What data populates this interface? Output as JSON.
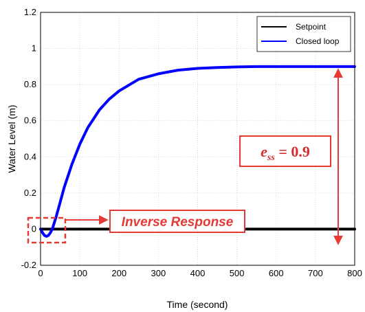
{
  "chart_data": {
    "type": "line",
    "title": "",
    "xlabel": "Time (second)",
    "ylabel": "Water Level (m)",
    "xlim": [
      0,
      800
    ],
    "ylim": [
      -0.2,
      1.2
    ],
    "x_ticks": [
      0,
      100,
      200,
      300,
      400,
      500,
      600,
      700,
      800
    ],
    "y_ticks": [
      -0.2,
      0,
      0.2,
      0.4,
      0.6,
      0.8,
      1,
      1.2
    ],
    "x_tick_labels": [
      "0",
      "100",
      "200",
      "300",
      "400",
      "500",
      "600",
      "700",
      "800"
    ],
    "y_tick_labels": [
      "-0.2",
      "0",
      "0.2",
      "0.4",
      "0.6",
      "0.8",
      "1",
      "1.2"
    ],
    "grid": true,
    "legend_position": "top-right",
    "series": [
      {
        "name": "Setpoint",
        "color": "#000000",
        "x": [
          0,
          800
        ],
        "y": [
          0,
          0
        ]
      },
      {
        "name": "Closed loop",
        "color": "#0000ff",
        "x": [
          0,
          5,
          10,
          15,
          20,
          25,
          30,
          40,
          50,
          60,
          80,
          100,
          120,
          150,
          175,
          200,
          250,
          300,
          350,
          400,
          450,
          500,
          550,
          600,
          650,
          700,
          750,
          800
        ],
        "y": [
          0,
          -0.02,
          -0.035,
          -0.04,
          -0.035,
          -0.02,
          0.0,
          0.07,
          0.15,
          0.23,
          0.36,
          0.47,
          0.56,
          0.66,
          0.72,
          0.765,
          0.83,
          0.86,
          0.88,
          0.89,
          0.895,
          0.898,
          0.9,
          0.9,
          0.9,
          0.9,
          0.9,
          0.9
        ]
      }
    ],
    "annotations": [
      {
        "text": "Inverse Response",
        "color": "#e53935"
      },
      {
        "text_main": "e",
        "text_sub": "ss",
        "text_rest": " = 0.9",
        "color": "#d32f2f"
      }
    ]
  }
}
